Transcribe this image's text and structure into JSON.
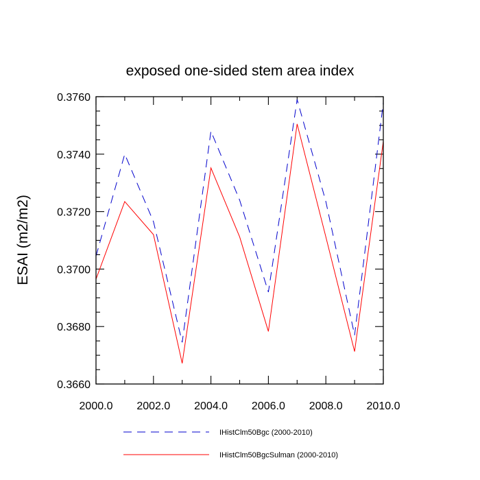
{
  "chart_data": {
    "type": "line",
    "title": "exposed one-sided stem area index",
    "xlabel": "",
    "ylabel": "ESAI  (m2/m2)",
    "xlim": [
      2000,
      2010
    ],
    "ylim": [
      0.366,
      0.376
    ],
    "x": [
      2000,
      2001,
      2002,
      2003,
      2004,
      2005,
      2006,
      2007,
      2008,
      2009,
      2010
    ],
    "x_tick_labels": [
      "2000.0",
      "2002.0",
      "2004.0",
      "2006.0",
      "2008.0",
      "2010.0"
    ],
    "y_tick_labels": [
      "0.3660",
      "0.3680",
      "0.3700",
      "0.3720",
      "0.3740",
      "0.3760"
    ],
    "grid": false,
    "legend_position": "bottom",
    "series": [
      {
        "name": "IHistClm50Bgc (2000-2010)",
        "color": "#0000cc",
        "dash": "dashed",
        "values": [
          0.37045,
          0.374,
          0.37165,
          0.36745,
          0.3748,
          0.3724,
          0.3692,
          0.3759,
          0.37235,
          0.3677,
          0.3758
        ]
      },
      {
        "name": "IHistClm50BgcSulman (2000-2010)",
        "color": "#ff0000",
        "dash": "solid",
        "values": [
          0.36965,
          0.37235,
          0.3712,
          0.36672,
          0.37352,
          0.37112,
          0.36783,
          0.37505,
          0.37112,
          0.36713,
          0.37445
        ]
      }
    ]
  }
}
